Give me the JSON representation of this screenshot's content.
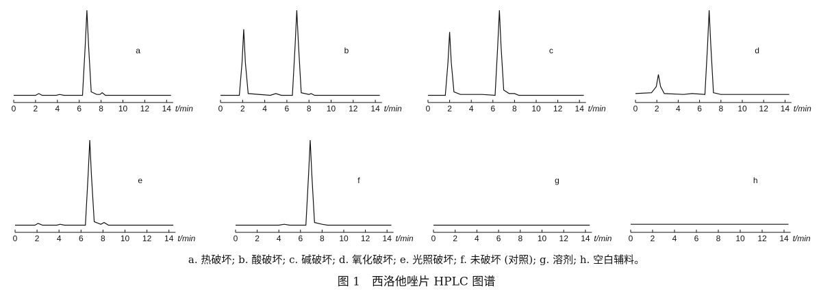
{
  "chart_data": [
    {
      "type": "line",
      "label": "a",
      "xlabel": "t/min",
      "color": "#111",
      "xlim": [
        0,
        14.6
      ],
      "ylim": [
        0,
        100
      ],
      "xticks": [
        0,
        2,
        4,
        6,
        8,
        10,
        12,
        14
      ],
      "x": [
        0,
        2.0,
        2.3,
        2.6,
        3.9,
        4.2,
        4.6,
        6.3,
        6.55,
        6.7,
        6.85,
        7.1,
        7.6,
        7.9,
        8.1,
        8.4,
        14.4
      ],
      "values": [
        2,
        2,
        4,
        2,
        2,
        3,
        2,
        2,
        60,
        100,
        60,
        6,
        3,
        3,
        5,
        2,
        2
      ]
    },
    {
      "type": "line",
      "label": "b",
      "xlabel": "t/min",
      "color": "#111",
      "xlim": [
        0,
        14.6
      ],
      "ylim": [
        0,
        100
      ],
      "xticks": [
        0,
        2,
        4,
        6,
        8,
        10,
        12,
        14
      ],
      "x": [
        0,
        1.7,
        1.95,
        2.1,
        2.25,
        2.5,
        4.5,
        5.0,
        5.5,
        6.5,
        6.75,
        6.9,
        7.05,
        7.3,
        8.0,
        8.2,
        8.5,
        14.4
      ],
      "values": [
        2,
        2,
        40,
        78,
        40,
        4,
        2,
        4,
        2,
        2,
        60,
        100,
        60,
        5,
        3,
        4,
        2,
        2
      ]
    },
    {
      "type": "line",
      "label": "c",
      "xlabel": "t/min",
      "color": "#111",
      "xlim": [
        0,
        14.6
      ],
      "ylim": [
        0,
        100
      ],
      "xticks": [
        0,
        2,
        4,
        6,
        8,
        10,
        12,
        14
      ],
      "x": [
        0,
        1.6,
        1.85,
        2.0,
        2.15,
        2.4,
        3.0,
        4.2,
        5.0,
        6.2,
        6.45,
        6.6,
        6.75,
        7.0,
        7.5,
        8.0,
        8.4,
        14.4
      ],
      "values": [
        2,
        2,
        40,
        75,
        40,
        6,
        3,
        3,
        3,
        2,
        60,
        100,
        60,
        8,
        4,
        4,
        2,
        2
      ]
    },
    {
      "type": "line",
      "label": "d",
      "xlabel": "t/min",
      "color": "#111",
      "xlim": [
        0,
        14.6
      ],
      "ylim": [
        0,
        100
      ],
      "xticks": [
        0,
        2,
        4,
        6,
        8,
        10,
        12,
        14
      ],
      "x": [
        0,
        1.5,
        1.95,
        2.15,
        2.35,
        2.7,
        4.5,
        5.3,
        6.5,
        6.75,
        6.9,
        7.05,
        7.3,
        8.0,
        14.4
      ],
      "values": [
        4,
        5,
        12,
        26,
        12,
        4,
        3,
        4,
        3,
        60,
        100,
        60,
        5,
        3,
        3
      ]
    },
    {
      "type": "line",
      "label": "e",
      "xlabel": "t/min",
      "color": "#111",
      "xlim": [
        0,
        14.6
      ],
      "ylim": [
        0,
        100
      ],
      "xticks": [
        0,
        2,
        4,
        6,
        8,
        10,
        12,
        14
      ],
      "x": [
        0,
        1.8,
        2.1,
        2.5,
        3.8,
        4.1,
        4.5,
        6.4,
        6.65,
        6.8,
        6.95,
        7.2,
        7.8,
        8.1,
        8.5,
        14.4
      ],
      "values": [
        2,
        2,
        4,
        2,
        2,
        3,
        2,
        2,
        60,
        100,
        60,
        6,
        3,
        5,
        2,
        2
      ]
    },
    {
      "type": "line",
      "label": "f",
      "xlabel": "t/min",
      "color": "#111",
      "xlim": [
        0,
        14.6
      ],
      "ylim": [
        0,
        100
      ],
      "xticks": [
        0,
        2,
        4,
        6,
        8,
        10,
        12,
        14
      ],
      "x": [
        0,
        4.0,
        4.5,
        5.0,
        6.5,
        6.75,
        6.9,
        7.05,
        7.3,
        8.0,
        8.5,
        14.4
      ],
      "values": [
        2,
        2,
        3,
        2,
        2,
        60,
        100,
        60,
        5,
        3,
        2,
        2
      ]
    },
    {
      "type": "line",
      "label": "g",
      "xlabel": "t/min",
      "color": "#111",
      "xlim": [
        0,
        14.6
      ],
      "ylim": [
        0,
        100
      ],
      "xticks": [
        0,
        2,
        4,
        6,
        8,
        10,
        12,
        14
      ],
      "x": [
        0,
        5,
        10,
        14.4
      ],
      "values": [
        2,
        2,
        2,
        2
      ]
    },
    {
      "type": "line",
      "label": "h",
      "xlabel": "t/min",
      "color": "#111",
      "xlim": [
        0,
        14.6
      ],
      "ylim": [
        0,
        100
      ],
      "xticks": [
        0,
        2,
        4,
        6,
        8,
        10,
        12,
        14
      ],
      "x": [
        0,
        3,
        6,
        10,
        14.4
      ],
      "values": [
        3,
        3,
        3,
        3,
        3
      ]
    }
  ],
  "caption": "a. 热破坏; b. 酸破坏; c. 碱破坏; d. 氧化破坏; e. 光照破坏; f. 未破坏 (对照); g. 溶剂; h. 空白辅料。",
  "figure_title": "图 1　西洛他唑片 HPLC 图谱"
}
